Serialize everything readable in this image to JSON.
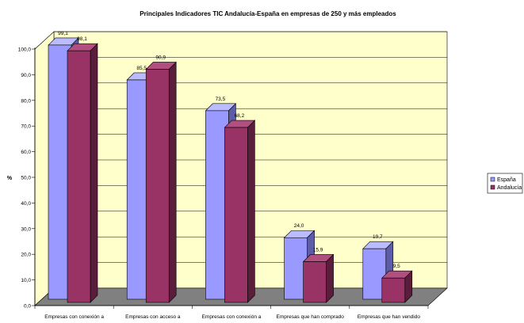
{
  "chart_data": {
    "type": "bar",
    "title": "Principales Indicadores TIC Andalucía-España en empresas de 250  y más empleados",
    "ylabel": "%",
    "xlabel": "",
    "ylim": [
      0,
      100
    ],
    "yticks": [
      "0,0",
      "10,0",
      "20,0",
      "30,0",
      "40,0",
      "50,0",
      "60,0",
      "70,0",
      "80,0",
      "90,0",
      "100,0"
    ],
    "categories": [
      "Empresas con conexión a",
      "Empresas con acceso a",
      "Empresas con conexión a",
      "Empresas que han comprado",
      "Empresas que han vendido"
    ],
    "series": [
      {
        "name": "España",
        "values": [
          99.1,
          85.5,
          73.5,
          24.0,
          19.7
        ],
        "labels": [
          "99,1",
          "85,5",
          "73,5",
          "24,0",
          "19,7"
        ]
      },
      {
        "name": "Andalucía",
        "values": [
          98.1,
          90.9,
          68.2,
          15.9,
          9.5
        ],
        "labels": [
          "98,1",
          "90,9",
          "68,2",
          "15,9",
          "9,5"
        ]
      }
    ],
    "legend_position": "right",
    "grid": true,
    "colors": {
      "espana_front": "#9999ff",
      "espana_top": "#bbbbff",
      "espana_side": "#5c5ca8",
      "andalucia_front": "#993366",
      "andalucia_top": "#b04f80",
      "andalucia_side": "#5a1e3c",
      "wall": "#ffffcc",
      "floor": "#808080"
    }
  }
}
